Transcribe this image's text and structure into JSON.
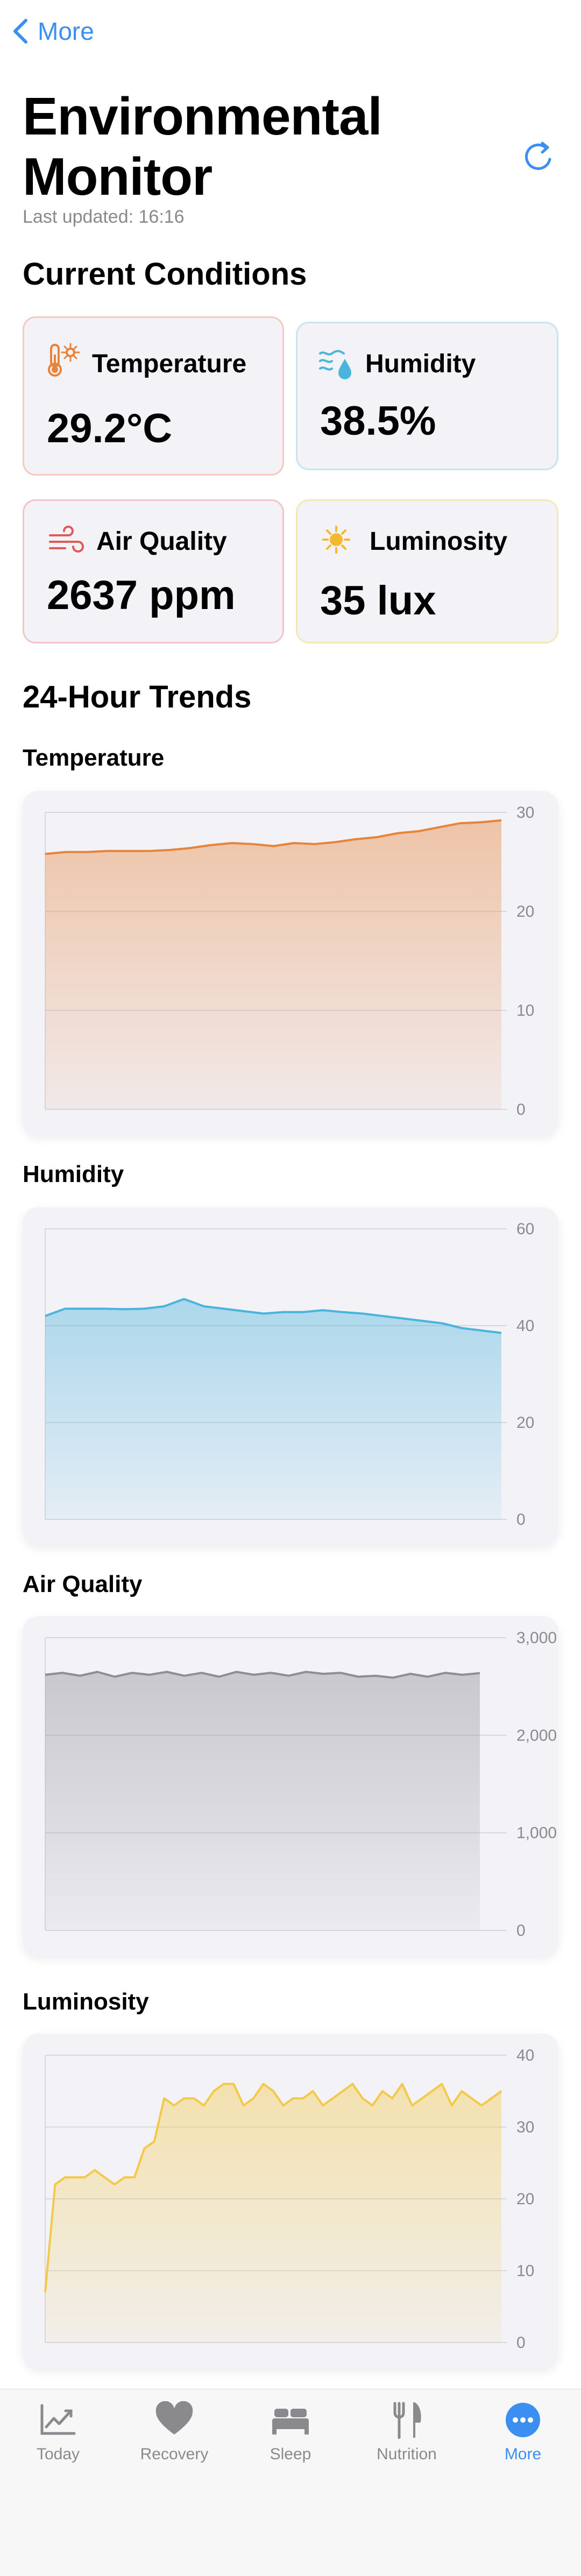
{
  "nav": {
    "back_label": "More"
  },
  "header": {
    "title": "Environmental Monitor",
    "last_updated": "Last updated: 16:16"
  },
  "sections": {
    "current": "Current Conditions",
    "trends": "24-Hour Trends"
  },
  "cards": [
    {
      "label": "Temperature",
      "value": "29.2°C",
      "icon": "thermometer-sun-icon",
      "color": "#e8843a"
    },
    {
      "label": "Humidity",
      "value": "38.5%",
      "icon": "humidity-icon",
      "color": "#4ab4dc"
    },
    {
      "label": "Air Quality",
      "value": "2637 ppm",
      "icon": "wind-icon",
      "color": "#e05a5a"
    },
    {
      "label": "Luminosity",
      "value": "35 lux",
      "icon": "sun-icon",
      "color": "#f4b92e"
    }
  ],
  "chart_data": [
    {
      "type": "area",
      "title": "Temperature",
      "color": "#e8843a",
      "ylim": [
        0,
        30
      ],
      "yticks": [
        "0",
        "10",
        "20",
        "30"
      ],
      "values": [
        25.8,
        26.0,
        26.0,
        26.1,
        26.1,
        26.1,
        26.2,
        26.4,
        26.7,
        26.9,
        26.8,
        26.6,
        26.9,
        26.8,
        27.0,
        27.3,
        27.5,
        27.9,
        28.1,
        28.5,
        28.9,
        29.0,
        29.2
      ]
    },
    {
      "type": "area",
      "title": "Humidity",
      "color": "#4ab4dc",
      "ylim": [
        0,
        60
      ],
      "yticks": [
        "0",
        "20",
        "40",
        "60"
      ],
      "values": [
        42.0,
        43.5,
        43.5,
        43.5,
        43.4,
        43.5,
        44.0,
        45.5,
        44.0,
        43.5,
        43.0,
        42.5,
        42.8,
        42.8,
        43.2,
        42.8,
        42.5,
        42.0,
        41.5,
        41.0,
        40.5,
        39.5,
        39.0,
        38.5
      ]
    },
    {
      "type": "area",
      "title": "Air Quality",
      "color": "#8e8e93",
      "ylim": [
        0,
        3000
      ],
      "yticks": [
        "0",
        "1,000",
        "2,000",
        "3,000"
      ],
      "values": [
        2620,
        2640,
        2610,
        2650,
        2600,
        2640,
        2620,
        2650,
        2610,
        2640,
        2600,
        2650,
        2620,
        2640,
        2610,
        2650,
        2630,
        2640,
        2600,
        2610,
        2590,
        2630,
        2600,
        2640,
        2620,
        2637
      ]
    },
    {
      "type": "area",
      "title": "Luminosity",
      "color": "#f4c94a",
      "ylim": [
        0,
        40
      ],
      "yticks": [
        "0",
        "10",
        "20",
        "30",
        "40"
      ],
      "values": [
        7,
        22,
        23,
        23,
        23,
        24,
        23,
        22,
        23,
        23,
        27,
        28,
        34,
        33,
        34,
        34,
        33,
        35,
        36,
        36,
        33,
        34,
        36,
        35,
        33,
        34,
        34,
        35,
        33,
        34,
        35,
        36,
        34,
        33,
        35,
        34,
        36,
        33,
        34,
        35,
        36,
        33,
        35,
        34,
        33,
        34,
        35
      ]
    }
  ],
  "tabs": [
    {
      "label": "Today",
      "icon": "chart-icon",
      "active": false
    },
    {
      "label": "Recovery",
      "icon": "heart-icon",
      "active": false
    },
    {
      "label": "Sleep",
      "icon": "bed-icon",
      "active": false
    },
    {
      "label": "Nutrition",
      "icon": "fork-knife-icon",
      "active": false
    },
    {
      "label": "More",
      "icon": "more-icon",
      "active": true
    }
  ],
  "colors": {
    "accent": "#3b8ff0",
    "card_bg": "#f2f2f7"
  }
}
